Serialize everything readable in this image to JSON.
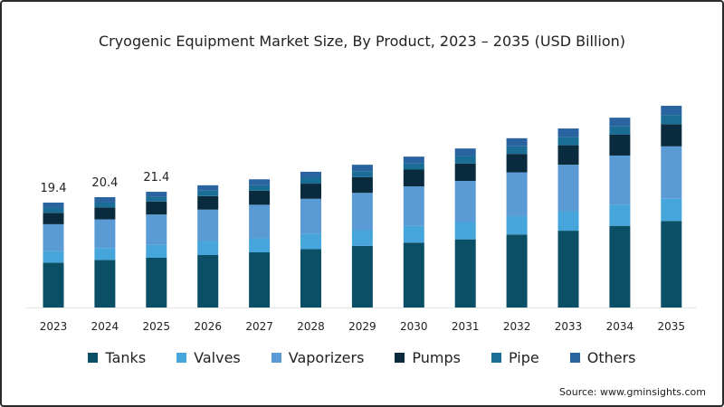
{
  "chart_data": {
    "type": "bar",
    "stacked": true,
    "title": "Cryogenic Equipment Market Size, By Product, 2023 – 2035 (USD Billion)",
    "xlabel": "",
    "ylabel": "",
    "ylim": [
      0,
      40
    ],
    "grid": false,
    "legend_position": "bottom",
    "categories": [
      "2023",
      "2024",
      "2025",
      "2026",
      "2027",
      "2028",
      "2029",
      "2030",
      "2031",
      "2032",
      "2033",
      "2034",
      "2035"
    ],
    "series": [
      {
        "name": "Tanks",
        "color": "#0b4f66",
        "values": [
          8.3,
          8.8,
          9.2,
          9.7,
          10.2,
          10.8,
          11.4,
          12.0,
          12.6,
          13.5,
          14.2,
          15.1,
          16.0
        ]
      },
      {
        "name": "Valves",
        "color": "#46a6dc",
        "values": [
          2.1,
          2.2,
          2.4,
          2.5,
          2.6,
          2.8,
          2.9,
          3.1,
          3.2,
          3.4,
          3.6,
          3.9,
          4.1
        ]
      },
      {
        "name": "Vaporizers",
        "color": "#5b9bd5",
        "values": [
          5.0,
          5.3,
          5.6,
          5.9,
          6.2,
          6.5,
          6.9,
          7.3,
          7.6,
          8.1,
          8.6,
          9.1,
          9.7
        ]
      },
      {
        "name": "Pumps",
        "color": "#0a2a3d",
        "values": [
          2.1,
          2.2,
          2.4,
          2.5,
          2.6,
          2.8,
          2.9,
          3.1,
          3.2,
          3.4,
          3.6,
          3.9,
          4.1
        ]
      },
      {
        "name": "Pipe",
        "color": "#1a6e96",
        "values": [
          0.9,
          0.9,
          0.9,
          1.0,
          1.0,
          1.1,
          1.1,
          1.2,
          1.4,
          1.4,
          1.5,
          1.5,
          1.7
        ]
      },
      {
        "name": "Others",
        "color": "#2a64a0",
        "values": [
          1.0,
          1.0,
          0.9,
          1.0,
          1.1,
          1.1,
          1.2,
          1.2,
          1.4,
          1.5,
          1.6,
          1.6,
          1.7
        ]
      }
    ],
    "data_labels": [
      {
        "category": "2023",
        "text": "19.4"
      },
      {
        "category": "2024",
        "text": "20.4"
      },
      {
        "category": "2025",
        "text": "21.4"
      }
    ]
  },
  "source": "Source: www.gminsights.com"
}
